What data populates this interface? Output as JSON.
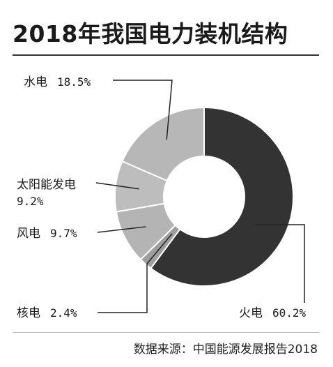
{
  "title": "2018年我国电力装机结构",
  "source": "数据来源：中国能源发展报告2018",
  "chart_data": {
    "type": "pie",
    "style": "donut",
    "title": "2018年我国电力装机结构",
    "slices": [
      {
        "name": "火电",
        "value": 60.2,
        "label": "60.2%",
        "color": "#333333"
      },
      {
        "name": "核电",
        "value": 2.4,
        "label": "2.4%",
        "color": "#9e9e9e"
      },
      {
        "name": "风电",
        "value": 9.7,
        "label": "9.7%",
        "color": "#b4b4b4"
      },
      {
        "name": "太阳能发电",
        "value": 9.2,
        "label": "9.2%",
        "color": "#bdbdbd"
      },
      {
        "name": "水电",
        "value": 18.5,
        "label": "18.5%",
        "color": "#b7b7b7"
      }
    ]
  }
}
